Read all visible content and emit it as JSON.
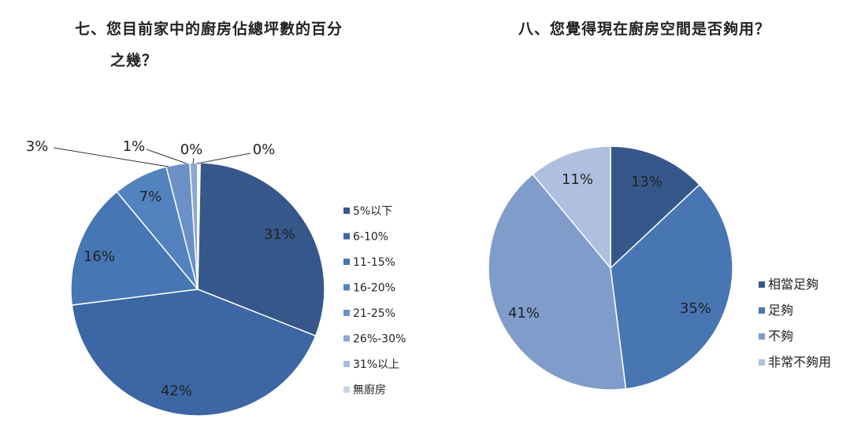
{
  "titles": {
    "chart1_line1": "七、您目前家中的廚房佔總坪數的百分",
    "chart1_line2": "之幾？",
    "chart2": "八、您覺得現在廚房空間是否夠用？"
  },
  "chart_data": [
    {
      "type": "pie",
      "title": "七、您目前家中的廚房佔總坪數的百分之幾？",
      "categories": [
        "5%以下",
        "6-10%",
        "11-15%",
        "16-20%",
        "21-25%",
        "26%-30%",
        "31%以上",
        "無廚房"
      ],
      "values": [
        31,
        42,
        16,
        7,
        3,
        1,
        0,
        0
      ],
      "labels": [
        "31%",
        "42%",
        "16%",
        "7%",
        "3%",
        "1%",
        "0%",
        "0%"
      ],
      "colors": [
        "#36578a",
        "#3c66a4",
        "#4676b3",
        "#5283bf",
        "#6b90c6",
        "#8fa8d0",
        "#a9bddf",
        "#c5d3ea"
      ],
      "legend": "right"
    },
    {
      "type": "pie",
      "title": "八、您覺得現在廚房空間是否夠用？",
      "categories": [
        "相當足夠",
        "足夠",
        "不夠",
        "非常不夠用"
      ],
      "values": [
        13,
        35,
        41,
        11
      ],
      "labels": [
        "13%",
        "35%",
        "41%",
        "11%"
      ],
      "colors": [
        "#36578a",
        "#4876b3",
        "#7f9ccb",
        "#aebfdf"
      ],
      "legend": "right"
    }
  ]
}
